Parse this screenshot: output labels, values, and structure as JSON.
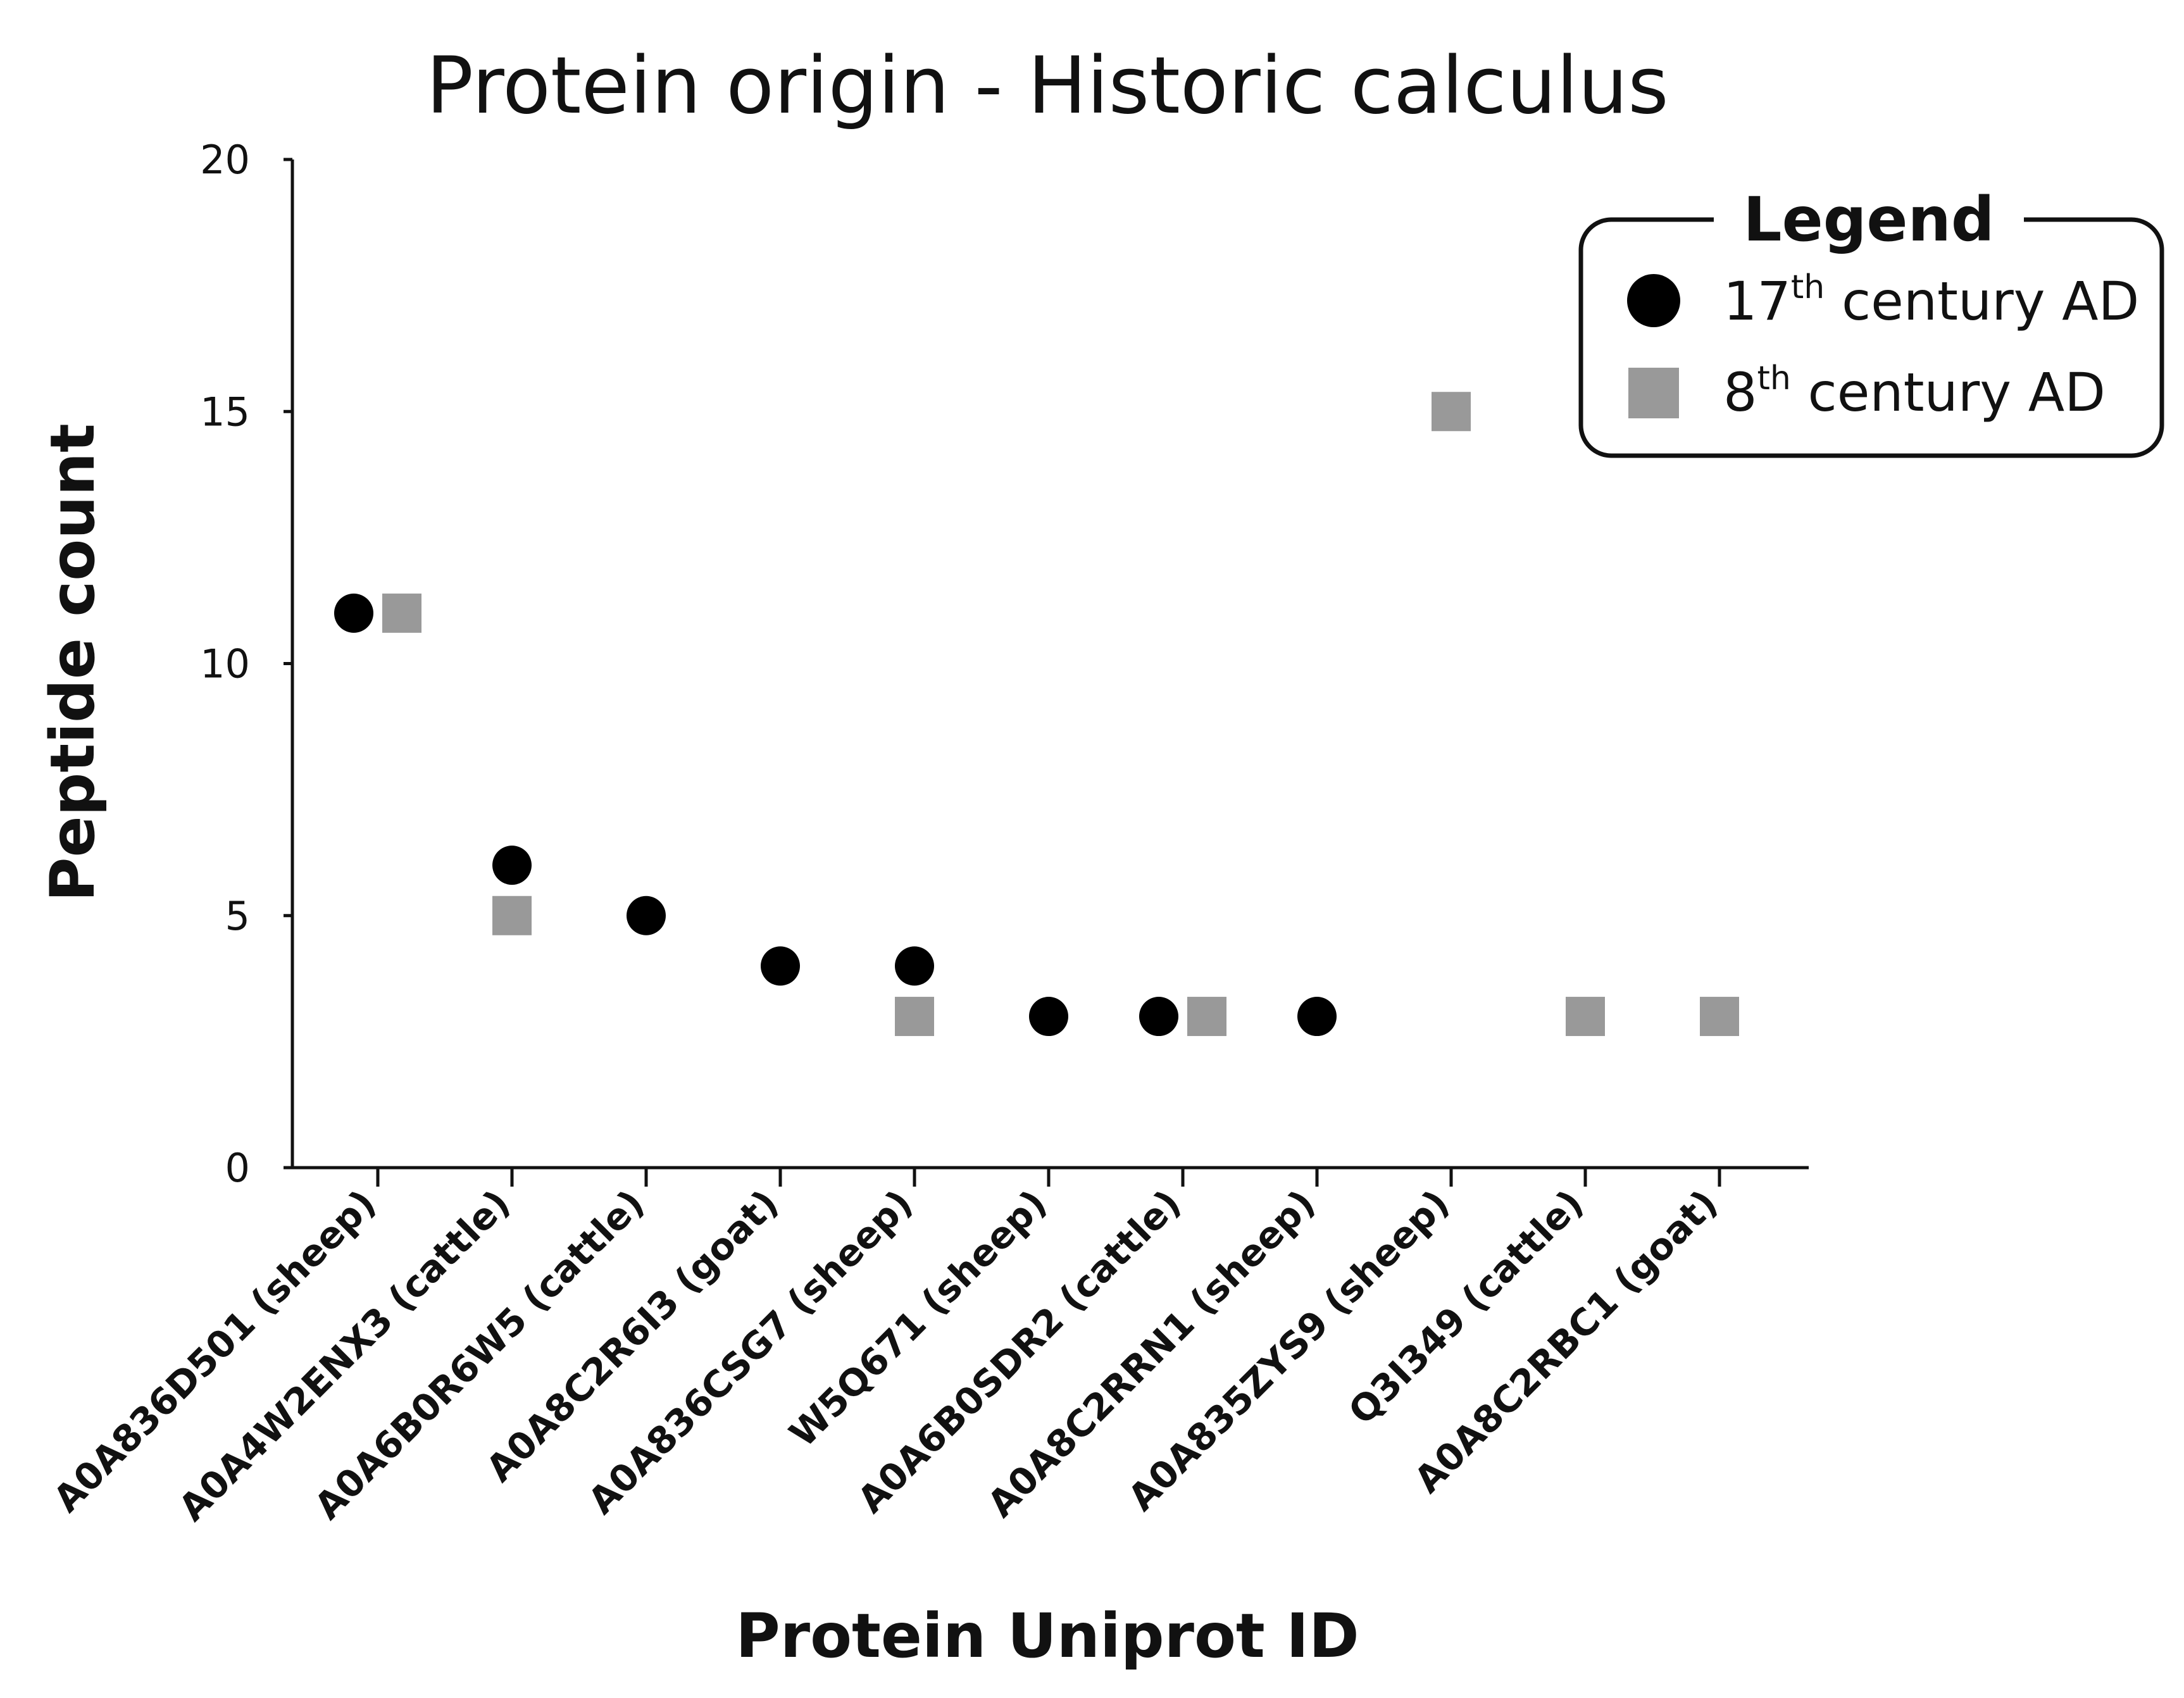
{
  "chart_data": {
    "type": "scatter",
    "title": "Protein origin - Historic calculus",
    "xlabel": "Protein Uniprot  ID",
    "ylabel": "Peptide count",
    "ylim": [
      0,
      20
    ],
    "yticks": [
      0,
      5,
      10,
      15,
      20
    ],
    "grid": false,
    "legend_position": "top-right",
    "legend_title": "Legend",
    "categories": [
      "A0A836D501 (sheep)",
      "A0A4W2ENX3 (cattle)",
      "A0A6B0R6W5 (cattle)",
      "A0A8C2R6I3 (goat)",
      "A0A836CSG7 (sheep)",
      "W5Q671 (sheep)",
      "A0A6B0SDR2 (cattle)",
      "A0A8C2RRN1 (sheep)",
      "A0A835ZYS9 (sheep)",
      "Q3I349 (cattle)",
      "A0A8C2RBC1 (goat)"
    ],
    "series": [
      {
        "name": "17th century AD",
        "label_main": "17",
        "label_sup": "th",
        "label_rest": " century AD",
        "marker": "circle",
        "color": "#000000",
        "values": [
          11,
          6,
          5,
          4,
          4,
          3,
          3,
          3,
          null,
          null,
          null
        ]
      },
      {
        "name": "8th century AD",
        "label_main": "8",
        "label_sup": "th",
        "label_rest": " century AD",
        "marker": "square",
        "color": "#999999",
        "values": [
          11,
          5,
          null,
          null,
          3,
          null,
          3,
          null,
          15,
          3,
          3
        ]
      }
    ]
  }
}
